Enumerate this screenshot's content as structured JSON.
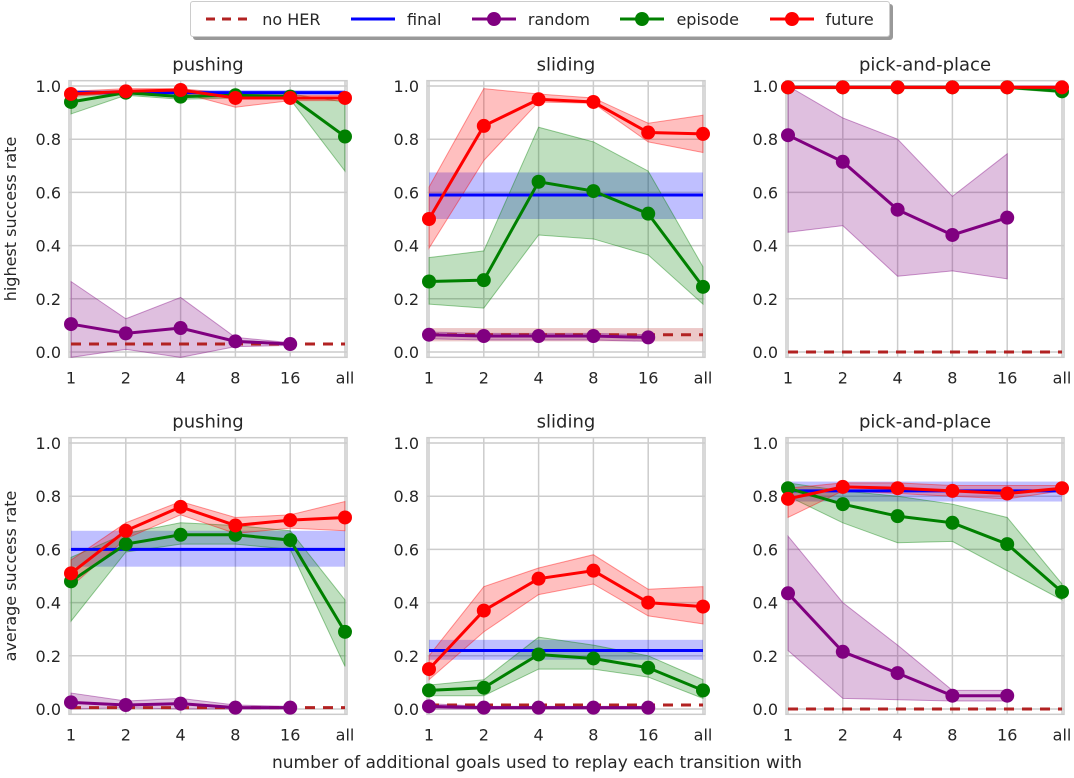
{
  "chart_data": {
    "type": "line",
    "xlabel": "number of additional goals used to replay each transition with",
    "x_categories": [
      "1",
      "2",
      "4",
      "8",
      "16",
      "all"
    ],
    "ylim": [
      -0.02,
      1.02
    ],
    "yticks": [
      "0.0",
      "0.2",
      "0.4",
      "0.6",
      "0.8",
      "1.0"
    ],
    "grid": true,
    "legend_position": "top-center",
    "legend": [
      {
        "name": "no HER",
        "color": "#b22222",
        "style": "dashed"
      },
      {
        "name": "final",
        "color": "#0000ff",
        "style": "solid"
      },
      {
        "name": "random",
        "color": "#800080",
        "style": "solid-marker"
      },
      {
        "name": "episode",
        "color": "#008000",
        "style": "solid-marker"
      },
      {
        "name": "future",
        "color": "#ff0000",
        "style": "solid-marker"
      }
    ],
    "panels": [
      {
        "title": "pushing",
        "ylabel": "highest success rate",
        "noHER": {
          "value": 0.03
        },
        "final": {
          "value": 0.975,
          "band": [
            0.965,
            0.985
          ]
        },
        "random": {
          "values": [
            0.105,
            0.07,
            0.09,
            0.04,
            0.03
          ],
          "lo": [
            -0.02,
            0.01,
            -0.02,
            0.02,
            0.025
          ],
          "hi": [
            0.265,
            0.125,
            0.205,
            0.055,
            0.035
          ]
        },
        "episode": {
          "values": [
            0.94,
            0.975,
            0.96,
            0.965,
            0.96,
            0.81
          ],
          "lo": [
            0.895,
            0.965,
            0.95,
            0.955,
            0.95,
            0.68
          ],
          "hi": [
            0.98,
            0.98,
            0.975,
            0.975,
            0.97,
            0.94
          ]
        },
        "future": {
          "values": [
            0.97,
            0.98,
            0.985,
            0.955,
            0.955,
            0.955
          ],
          "lo": [
            0.96,
            0.975,
            0.975,
            0.92,
            0.945,
            0.945
          ],
          "hi": [
            0.98,
            0.99,
            0.99,
            0.97,
            0.965,
            0.965
          ]
        }
      },
      {
        "title": "sliding",
        "ylabel": "",
        "noHER": {
          "value": 0.065,
          "band": [
            0.04,
            0.09
          ]
        },
        "final": {
          "value": 0.59,
          "band": [
            0.5,
            0.675
          ]
        },
        "random": {
          "values": [
            0.065,
            0.06,
            0.06,
            0.06,
            0.055
          ],
          "lo": [
            0.05,
            0.045,
            0.045,
            0.045,
            0.04
          ],
          "hi": [
            0.075,
            0.07,
            0.07,
            0.07,
            0.065
          ]
        },
        "episode": {
          "values": [
            0.265,
            0.27,
            0.64,
            0.605,
            0.52,
            0.245
          ],
          "lo": [
            0.18,
            0.165,
            0.44,
            0.425,
            0.365,
            0.18
          ],
          "hi": [
            0.355,
            0.38,
            0.845,
            0.79,
            0.68,
            0.32
          ]
        },
        "future": {
          "values": [
            0.5,
            0.85,
            0.95,
            0.94,
            0.825,
            0.82
          ],
          "lo": [
            0.39,
            0.72,
            0.94,
            0.935,
            0.79,
            0.75
          ],
          "hi": [
            0.62,
            0.99,
            0.97,
            0.955,
            0.86,
            0.89
          ]
        }
      },
      {
        "title": "pick-and-place",
        "ylabel": "",
        "noHER": {
          "value": 0.0
        },
        "final": {
          "value": 0.995,
          "band": [
            0.99,
            1.0
          ]
        },
        "random": {
          "values": [
            0.815,
            0.715,
            0.535,
            0.44,
            0.505
          ],
          "lo": [
            0.45,
            0.475,
            0.285,
            0.305,
            0.275
          ],
          "hi": [
            1.0,
            0.88,
            0.8,
            0.585,
            0.745
          ]
        },
        "episode": {
          "values": [
            0.995,
            0.995,
            0.995,
            0.995,
            0.995,
            0.98
          ],
          "lo": [
            0.99,
            0.99,
            0.99,
            0.99,
            0.99,
            0.975
          ],
          "hi": [
            1.0,
            1.0,
            1.0,
            1.0,
            1.0,
            0.99
          ]
        },
        "future": {
          "values": [
            0.995,
            0.995,
            0.995,
            0.995,
            0.995,
            0.995
          ],
          "lo": [
            0.99,
            0.99,
            0.99,
            0.99,
            0.99,
            0.99
          ],
          "hi": [
            1.0,
            1.0,
            1.0,
            1.0,
            1.0,
            1.0
          ]
        }
      },
      {
        "title": "pushing",
        "ylabel": "average success rate",
        "noHER": {
          "value": 0.005
        },
        "final": {
          "value": 0.6,
          "band": [
            0.535,
            0.67
          ]
        },
        "random": {
          "values": [
            0.025,
            0.015,
            0.02,
            0.005,
            0.005
          ],
          "lo": [
            0.0,
            0.005,
            0.0,
            0.0,
            0.0
          ],
          "hi": [
            0.06,
            0.03,
            0.04,
            0.015,
            0.01
          ]
        },
        "episode": {
          "values": [
            0.48,
            0.62,
            0.655,
            0.655,
            0.635,
            0.29
          ],
          "lo": [
            0.33,
            0.59,
            0.62,
            0.62,
            0.6,
            0.16
          ],
          "hi": [
            0.57,
            0.66,
            0.7,
            0.69,
            0.67,
            0.41
          ]
        },
        "future": {
          "values": [
            0.51,
            0.67,
            0.76,
            0.69,
            0.71,
            0.72
          ],
          "lo": [
            0.46,
            0.64,
            0.73,
            0.66,
            0.68,
            0.67
          ],
          "hi": [
            0.56,
            0.7,
            0.78,
            0.72,
            0.73,
            0.78
          ]
        }
      },
      {
        "title": "sliding",
        "ylabel": "",
        "noHER": {
          "value": 0.015
        },
        "final": {
          "value": 0.22,
          "band": [
            0.185,
            0.26
          ]
        },
        "random": {
          "values": [
            0.01,
            0.005,
            0.005,
            0.005,
            0.005
          ],
          "lo": [
            0.0,
            0.0,
            0.0,
            0.0,
            0.0
          ],
          "hi": [
            0.02,
            0.01,
            0.01,
            0.01,
            0.01
          ]
        },
        "episode": {
          "values": [
            0.07,
            0.08,
            0.205,
            0.19,
            0.155,
            0.07
          ],
          "lo": [
            0.05,
            0.05,
            0.15,
            0.15,
            0.12,
            0.04
          ],
          "hi": [
            0.09,
            0.11,
            0.27,
            0.24,
            0.2,
            0.11
          ]
        },
        "future": {
          "values": [
            0.15,
            0.37,
            0.49,
            0.52,
            0.4,
            0.385
          ],
          "lo": [
            0.11,
            0.29,
            0.43,
            0.47,
            0.35,
            0.32
          ],
          "hi": [
            0.2,
            0.46,
            0.53,
            0.58,
            0.45,
            0.46
          ]
        }
      },
      {
        "title": "pick-and-place",
        "ylabel": "",
        "noHER": {
          "value": 0.0
        },
        "final": {
          "value": 0.82,
          "band": [
            0.78,
            0.855
          ]
        },
        "random": {
          "values": [
            0.435,
            0.215,
            0.135,
            0.05,
            0.05
          ],
          "lo": [
            0.22,
            0.04,
            0.035,
            0.03,
            0.03
          ],
          "hi": [
            0.65,
            0.4,
            0.24,
            0.07,
            0.07
          ]
        },
        "episode": {
          "values": [
            0.83,
            0.77,
            0.725,
            0.7,
            0.62,
            0.44
          ],
          "lo": [
            0.8,
            0.7,
            0.625,
            0.63,
            0.52,
            0.41
          ],
          "hi": [
            0.85,
            0.82,
            0.8,
            0.77,
            0.72,
            0.47
          ]
        },
        "future": {
          "values": [
            0.79,
            0.835,
            0.83,
            0.82,
            0.81,
            0.83
          ],
          "lo": [
            0.72,
            0.82,
            0.81,
            0.8,
            0.79,
            0.82
          ],
          "hi": [
            0.83,
            0.85,
            0.85,
            0.84,
            0.84,
            0.84
          ]
        }
      }
    ]
  }
}
